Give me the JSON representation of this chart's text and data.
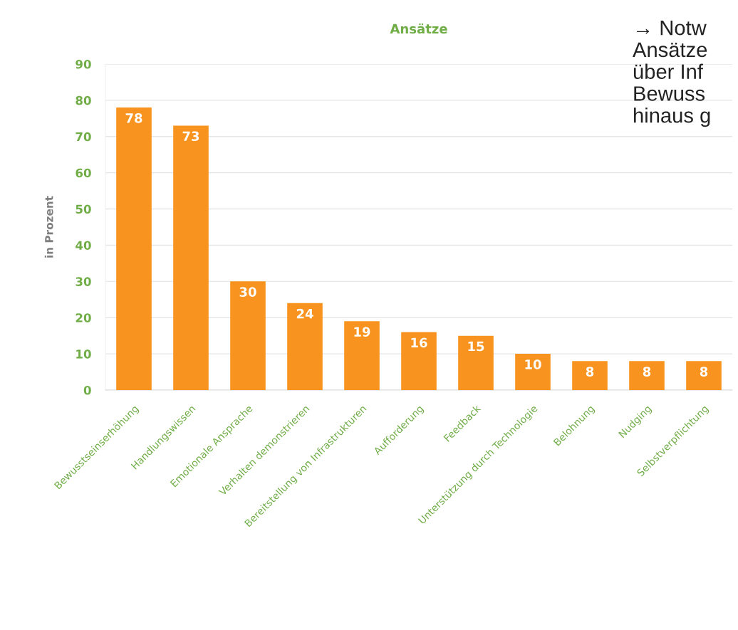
{
  "chart_data": {
    "type": "bar",
    "title": "Ansätze",
    "ylabel": "in Prozent",
    "categories": [
      "Bewusstseinserhöhung",
      "Handlungswissen",
      "Emotionale Ansprache",
      "Verhalten demonstrieren",
      "Bereitstellung von Infrastrukturen",
      "Aufforderung",
      "Feedback",
      "Unterstützung durch Technologie",
      "Belohnung",
      "Nudging",
      "Selbstverpflichtung"
    ],
    "values": [
      78,
      73,
      30,
      24,
      19,
      16,
      15,
      10,
      8,
      8,
      8
    ],
    "color": "#f7931e",
    "ylim": [
      0,
      90
    ],
    "yticks": [
      0,
      10,
      20,
      30,
      40,
      50,
      60,
      70,
      80,
      90
    ],
    "grid": "y",
    "data_labels": true,
    "annotations": [
      "→ Notw\nAnsätze\nüber Inf\nBewuss\nhinaus g"
    ]
  }
}
